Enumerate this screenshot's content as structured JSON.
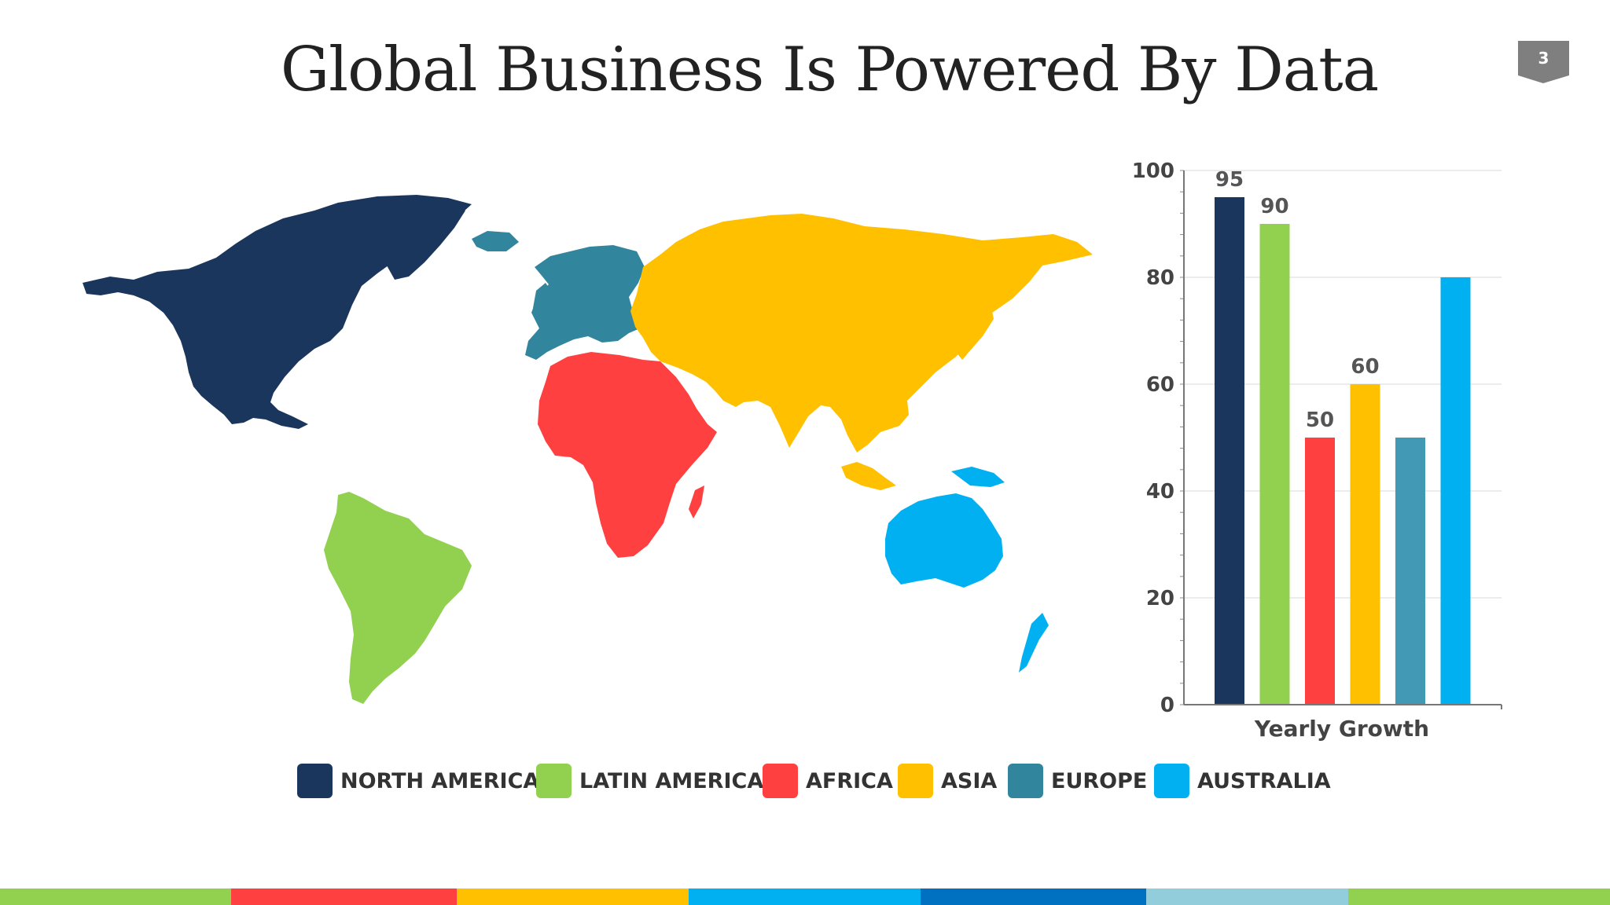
{
  "slide": {
    "title": "Global Business Is Powered By Data",
    "page_number": "3"
  },
  "legend": [
    {
      "label": "NORTH AMERICA",
      "color": "#1b365d"
    },
    {
      "label": "LATIN AMERICA",
      "color": "#92d050"
    },
    {
      "label": "AFRICA",
      "color": "#ff4040"
    },
    {
      "label": "ASIA",
      "color": "#ffc000"
    },
    {
      "label": "EUROPE",
      "color": "#31859c"
    },
    {
      "label": "AUSTRALIA",
      "color": "#00b0f0"
    }
  ],
  "footer_colors": [
    "#92d050",
    "#ff4040",
    "#ffc000",
    "#00b0f0",
    "#0070c0",
    "#92cddc",
    "#92d050"
  ],
  "chart_data": {
    "type": "bar",
    "categories": [
      "NORTH AMERICA",
      "LATIN AMERICA",
      "AFRICA",
      "ASIA",
      "EUROPE",
      "AUSTRALIA"
    ],
    "values": [
      95,
      90,
      50,
      60,
      50,
      80
    ],
    "data_labels": [
      "95",
      "90",
      "50",
      "60",
      "",
      ""
    ],
    "colors": [
      "#1b365d",
      "#92d050",
      "#ff4040",
      "#ffc000",
      "#4299b5",
      "#00b0f0"
    ],
    "xlabel": "Yearly Growth",
    "ylabel": "",
    "ylim": [
      0,
      100
    ],
    "yticks": [
      "0",
      "20",
      "40",
      "60",
      "80",
      "100"
    ],
    "grid": true
  }
}
